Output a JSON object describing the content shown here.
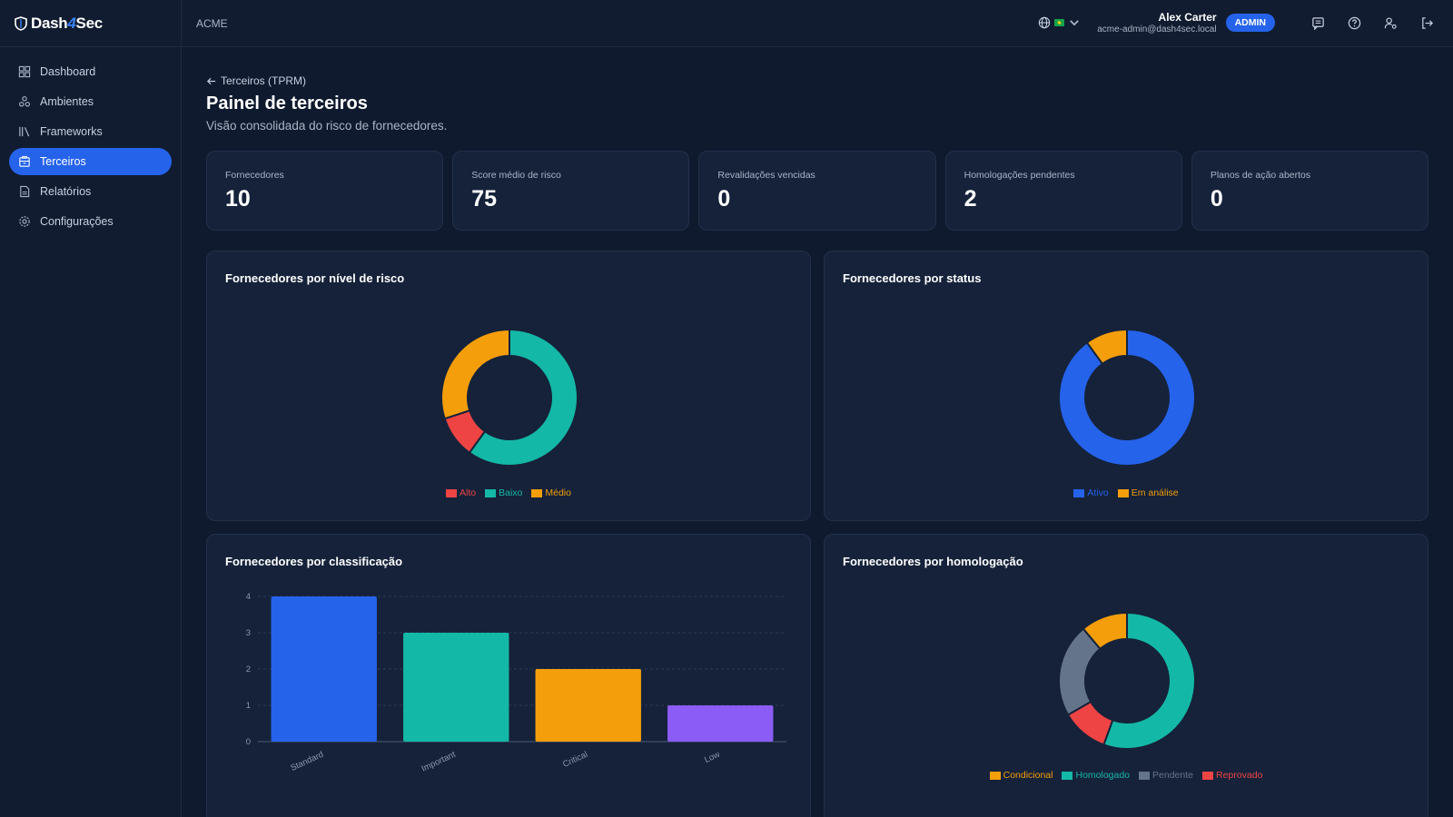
{
  "brand": {
    "name_a": "Dash",
    "name_mid": "4",
    "name_b": "Sec"
  },
  "sidebar": {
    "items": [
      {
        "label": "Dashboard",
        "icon": "dashboard-icon",
        "active": false
      },
      {
        "label": "Ambientes",
        "icon": "environments-icon",
        "active": false
      },
      {
        "label": "Frameworks",
        "icon": "frameworks-icon",
        "active": false
      },
      {
        "label": "Terceiros",
        "icon": "third-parties-icon",
        "active": true
      },
      {
        "label": "Relatórios",
        "icon": "reports-icon",
        "active": false
      },
      {
        "label": "Configurações",
        "icon": "settings-icon",
        "active": false
      }
    ]
  },
  "topbar": {
    "tenant": "ACME",
    "user_name": "Alex Carter",
    "user_email": "acme-admin@dash4sec.local",
    "role": "ADMIN"
  },
  "page": {
    "back_label": "Terceiros (TPRM)",
    "title": "Painel de terceiros",
    "subtitle": "Visão consolidada do risco de fornecedores."
  },
  "kpis": [
    {
      "label": "Fornecedores",
      "value": "10"
    },
    {
      "label": "Score médio de risco",
      "value": "75"
    },
    {
      "label": "Revalidações vencidas",
      "value": "0"
    },
    {
      "label": "Homologações pendentes",
      "value": "2"
    },
    {
      "label": "Planos de ação abertos",
      "value": "0"
    }
  ],
  "colors": {
    "blue": "#2563eb",
    "teal": "#14b8a6",
    "amber": "#f59e0b",
    "red": "#ef4444",
    "violet": "#8b5cf6",
    "slate": "#64748b"
  },
  "chart_data": [
    {
      "type": "pie",
      "title": "Fornecedores por nível de risco",
      "donut": true,
      "legend_position": "bottom",
      "labels": [
        "Alto",
        "Baixo",
        "Médio"
      ],
      "values": [
        1,
        6,
        3
      ],
      "colors": [
        "#ef4444",
        "#14b8a6",
        "#f59e0b"
      ],
      "order": [
        "Baixo",
        "Alto",
        "Médio"
      ]
    },
    {
      "type": "pie",
      "title": "Fornecedores por status",
      "donut": true,
      "legend_position": "bottom",
      "labels": [
        "Ativo",
        "Em análise"
      ],
      "values": [
        9,
        1
      ],
      "colors": [
        "#2563eb",
        "#f59e0b"
      ],
      "order": [
        "Ativo",
        "Em análise"
      ]
    },
    {
      "type": "bar",
      "title": "Fornecedores por classificação",
      "categories": [
        "Standard",
        "Important",
        "Critical",
        "Low"
      ],
      "values": [
        4,
        3,
        2,
        1
      ],
      "colors": [
        "#2563eb",
        "#14b8a6",
        "#f59e0b",
        "#8b5cf6"
      ],
      "ylim": [
        0,
        4
      ],
      "yticks": [
        0,
        1,
        2,
        3,
        4
      ],
      "grid": true
    },
    {
      "type": "pie",
      "title": "Fornecedores por homologação",
      "donut": true,
      "legend_position": "bottom",
      "labels": [
        "Condicional",
        "Homologado",
        "Pendente",
        "Reprovado"
      ],
      "values": [
        1,
        5,
        2,
        1
      ],
      "colors": [
        "#f59e0b",
        "#14b8a6",
        "#64748b",
        "#ef4444"
      ],
      "order": [
        "Homologado",
        "Reprovado",
        "Pendente",
        "Condicional"
      ]
    }
  ]
}
